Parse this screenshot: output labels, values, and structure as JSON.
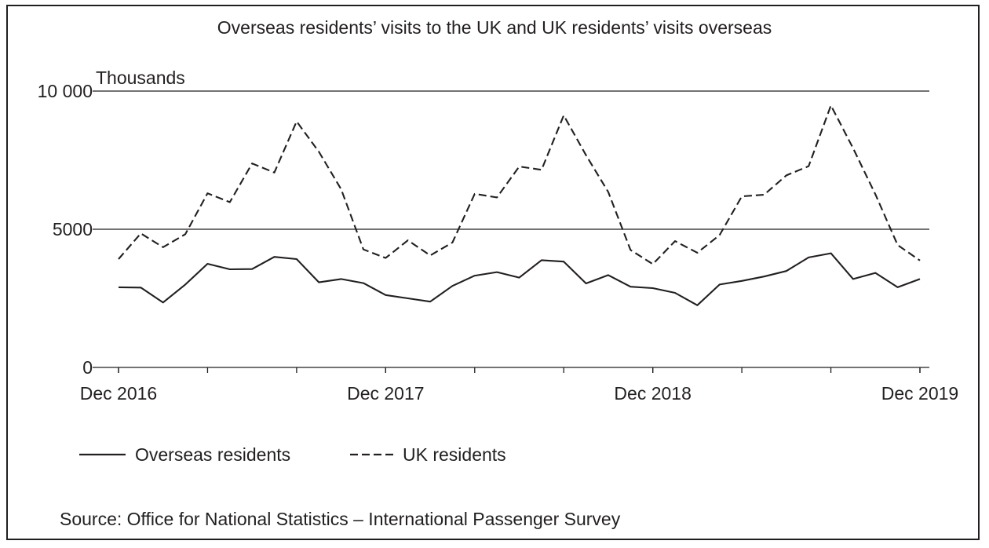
{
  "chart_data": {
    "type": "line",
    "title": "Overseas residents’ visits to the UK and UK residents’ visits overseas",
    "y_unit_label": "Thousands",
    "ylim": [
      0,
      10000
    ],
    "y_ticks": [
      {
        "value": 0,
        "label": "0"
      },
      {
        "value": 5000,
        "label": "5000"
      },
      {
        "value": 10000,
        "label": "10 000"
      }
    ],
    "x_tick_labels": [
      "Dec 2016",
      "Dec 2017",
      "Dec 2018",
      "Dec 2019"
    ],
    "x_labeled_months_index": [
      0,
      12,
      24,
      36
    ],
    "x_minor_tick_every": 4,
    "x_month_count": 37,
    "gridlines_y": [
      5000,
      10000
    ],
    "series": [
      {
        "name": "Overseas residents",
        "line_style": "solid",
        "color": "#231f20",
        "values": [
          2900,
          2890,
          2350,
          3000,
          3750,
          3550,
          3560,
          4000,
          3920,
          3080,
          3200,
          3050,
          2620,
          2500,
          2380,
          2950,
          3320,
          3450,
          3250,
          3880,
          3830,
          3040,
          3340,
          2920,
          2870,
          2700,
          2250,
          3000,
          3130,
          3290,
          3490,
          3980,
          4130,
          3200,
          3420,
          2900,
          3200
        ]
      },
      {
        "name": "UK residents",
        "line_style": "dashed",
        "color": "#231f20",
        "values": [
          3920,
          4850,
          4350,
          4820,
          6300,
          5980,
          7380,
          7050,
          8900,
          7800,
          6450,
          4270,
          3960,
          4600,
          4050,
          4520,
          6280,
          6150,
          7270,
          7150,
          9120,
          7680,
          6350,
          4250,
          3740,
          4570,
          4150,
          4790,
          6190,
          6250,
          6950,
          7280,
          9480,
          7930,
          6260,
          4430,
          3870
        ]
      }
    ],
    "legend_position": "bottom-left",
    "source_note": "Source: Office for National Statistics – International Passenger Survey"
  }
}
